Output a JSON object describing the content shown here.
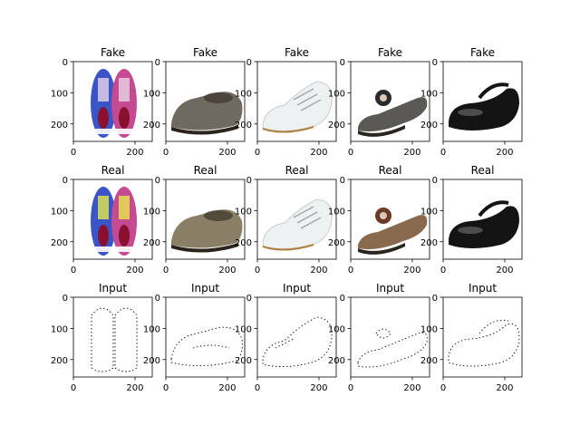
{
  "chart_data": {
    "type": "image-grid",
    "rows": 3,
    "columns": 5,
    "xlim": [
      0,
      256
    ],
    "ylim": [
      256,
      0
    ],
    "x_ticks": [
      0,
      200
    ],
    "y_ticks": [
      0,
      100,
      200
    ],
    "grid": false,
    "panels": [
      {
        "title": "Fake",
        "row": 0,
        "col": 0,
        "image": "sneaker-pair-generated"
      },
      {
        "title": "Fake",
        "row": 0,
        "col": 1,
        "image": "loafer-generated"
      },
      {
        "title": "Fake",
        "row": 0,
        "col": 2,
        "image": "white-sneaker-generated"
      },
      {
        "title": "Fake",
        "row": 0,
        "col": 3,
        "image": "sandal-generated"
      },
      {
        "title": "Fake",
        "row": 0,
        "col": 4,
        "image": "mary-jane-generated"
      },
      {
        "title": "Real",
        "row": 1,
        "col": 0,
        "image": "sneaker-pair-photo"
      },
      {
        "title": "Real",
        "row": 1,
        "col": 1,
        "image": "loafer-photo"
      },
      {
        "title": "Real",
        "row": 1,
        "col": 2,
        "image": "white-sneaker-photo"
      },
      {
        "title": "Real",
        "row": 1,
        "col": 3,
        "image": "sandal-photo"
      },
      {
        "title": "Real",
        "row": 1,
        "col": 4,
        "image": "mary-jane-photo"
      },
      {
        "title": "Input",
        "row": 2,
        "col": 0,
        "image": "sneaker-pair-edges"
      },
      {
        "title": "Input",
        "row": 2,
        "col": 1,
        "image": "loafer-edges"
      },
      {
        "title": "Input",
        "row": 2,
        "col": 2,
        "image": "white-sneaker-edges"
      },
      {
        "title": "Input",
        "row": 2,
        "col": 3,
        "image": "sandal-edges"
      },
      {
        "title": "Input",
        "row": 2,
        "col": 4,
        "image": "mary-jane-edges"
      }
    ]
  },
  "colors": {
    "axis": "#000000",
    "background": "#ffffff",
    "sneaker_pink": "#c54a92",
    "sneaker_blue": "#3a55c8",
    "sneaker_yellow": "#e6e84a",
    "loafer_fake": "#6e6a62",
    "loafer_real": "#8b7e66",
    "white_shoe": "#eef1f2",
    "sandal_fake": "#5a5955",
    "sandal_real": "#8a6a4e",
    "mary_jane": "#141414"
  }
}
